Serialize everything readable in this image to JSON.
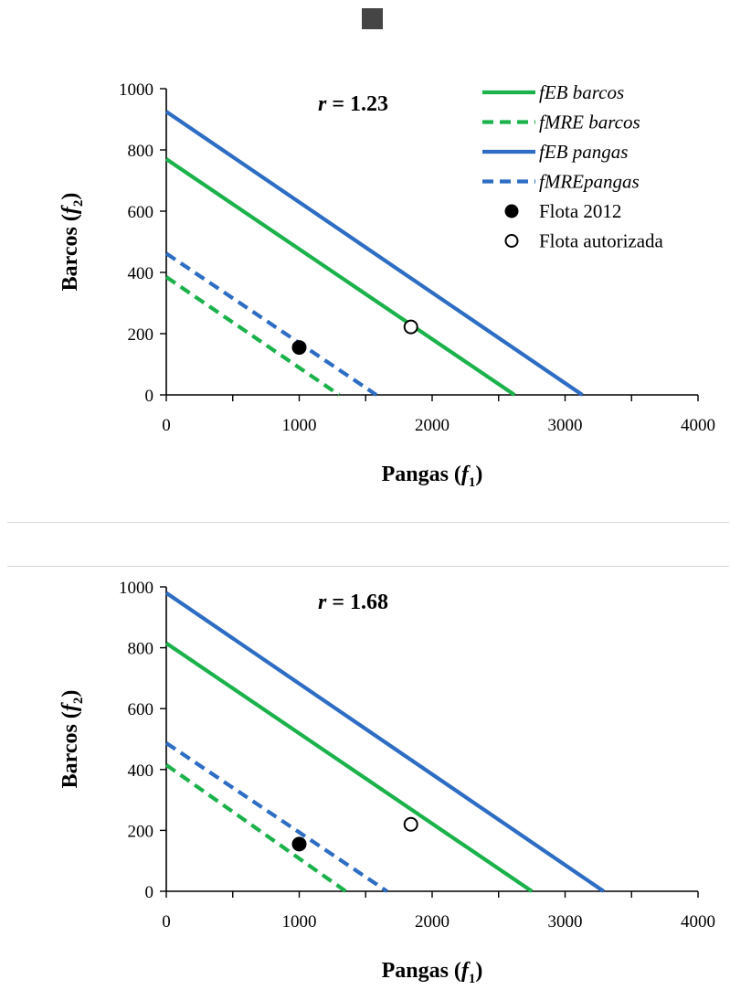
{
  "colors": {
    "green": "#1cb24b",
    "blue": "#2d6dc4",
    "axis": "#000000"
  },
  "chart_data": [
    {
      "type": "line",
      "annotation_parts": [
        "r",
        " = 1.23"
      ],
      "xlabel_parts": [
        "Pangas (",
        "f",
        "1",
        ")"
      ],
      "ylabel_parts": [
        "Barcos (",
        "f",
        "2",
        ")"
      ],
      "xlim": [
        0,
        4000
      ],
      "ylim": [
        0,
        1000
      ],
      "xticks": [
        0,
        1000,
        2000,
        3000,
        4000
      ],
      "yticks": [
        0,
        200,
        400,
        600,
        800,
        1000
      ],
      "grid": false,
      "legend": {
        "placement": "top-right",
        "entries": [
          {
            "label": "fEB barcos",
            "style": "green-solid"
          },
          {
            "label": "fMRE barcos",
            "style": "green-dashed"
          },
          {
            "label": "fEB pangas",
            "style": "blue-solid"
          },
          {
            "label": "fMREpangas",
            "style": "blue-dashed"
          },
          {
            "label": "Flota 2012",
            "style": "filled-marker"
          },
          {
            "label": "Flota autorizada",
            "style": "open-marker"
          }
        ]
      },
      "series": [
        {
          "name": "fEB barcos",
          "color": "green",
          "dash": false,
          "x": [
            0,
            2620
          ],
          "y": [
            770,
            0
          ]
        },
        {
          "name": "fMRE barcos",
          "color": "green",
          "dash": true,
          "x": [
            0,
            1300
          ],
          "y": [
            385,
            0
          ]
        },
        {
          "name": "fEB pangas",
          "color": "blue",
          "dash": false,
          "x": [
            0,
            3130
          ],
          "y": [
            925,
            0
          ]
        },
        {
          "name": "fMREpangas",
          "color": "blue",
          "dash": true,
          "x": [
            0,
            1580
          ],
          "y": [
            462,
            0
          ]
        }
      ],
      "points": [
        {
          "name": "Flota 2012",
          "filled": true,
          "x": 1000,
          "y": 155
        },
        {
          "name": "Flota autorizada",
          "filled": false,
          "x": 1840,
          "y": 222
        }
      ]
    },
    {
      "type": "line",
      "annotation_parts": [
        "r",
        " = 1.68"
      ],
      "xlabel_parts": [
        "Pangas (",
        "f",
        "1",
        ")"
      ],
      "ylabel_parts": [
        "Barcos (",
        "f",
        "2",
        ")"
      ],
      "xlim": [
        0,
        4000
      ],
      "ylim": [
        0,
        1000
      ],
      "xticks": [
        0,
        1000,
        2000,
        3000,
        4000
      ],
      "yticks": [
        0,
        200,
        400,
        600,
        800,
        1000
      ],
      "grid": false,
      "legend": null,
      "series": [
        {
          "color": "green",
          "dash": false,
          "x": [
            0,
            2750
          ],
          "y": [
            815,
            0
          ]
        },
        {
          "color": "green",
          "dash": true,
          "x": [
            0,
            1350
          ],
          "y": [
            415,
            0
          ]
        },
        {
          "color": "blue",
          "dash": false,
          "x": [
            0,
            3290
          ],
          "y": [
            980,
            0
          ]
        },
        {
          "color": "blue",
          "dash": true,
          "x": [
            0,
            1660
          ],
          "y": [
            487,
            0
          ]
        }
      ],
      "points": [
        {
          "filled": true,
          "x": 1000,
          "y": 155
        },
        {
          "filled": false,
          "x": 1840,
          "y": 220
        }
      ]
    }
  ]
}
